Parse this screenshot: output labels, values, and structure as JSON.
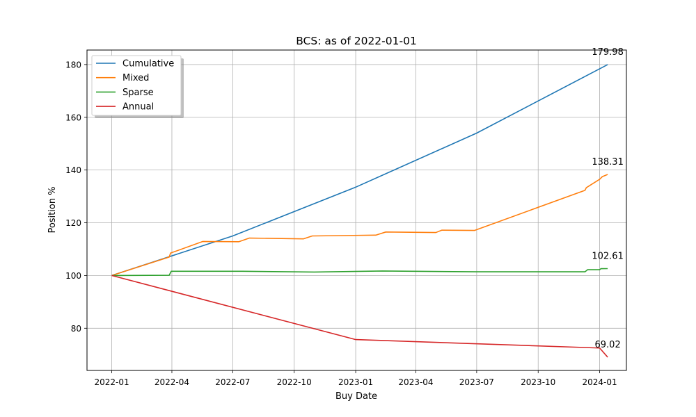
{
  "chart_data": {
    "type": "line",
    "title": "BCS: as of 2022-01-01",
    "xlabel": "Buy Date",
    "ylabel": "Position %",
    "x_type": "date",
    "xlim": [
      "2021-11-25",
      "2024-02-10"
    ],
    "ylim": [
      64,
      185.5
    ],
    "x_ticks": [
      "2022-01",
      "2022-04",
      "2022-07",
      "2022-10",
      "2023-01",
      "2023-04",
      "2023-07",
      "2023-10",
      "2024-01"
    ],
    "y_ticks": [
      80,
      100,
      120,
      140,
      160,
      180
    ],
    "grid": true,
    "legend_position": "upper-left",
    "series": [
      {
        "name": "Cumulative",
        "color": "#1f77b4",
        "points": [
          [
            "2022-01-01",
            100
          ],
          [
            "2022-07-01",
            115
          ],
          [
            "2023-01-01",
            133.5
          ],
          [
            "2023-07-01",
            154
          ],
          [
            "2024-01-13",
            179.98
          ]
        ],
        "end_label": "179.98"
      },
      {
        "name": "Mixed",
        "color": "#ff7f0e",
        "points": [
          [
            "2022-01-01",
            100
          ],
          [
            "2022-03-28",
            107
          ],
          [
            "2022-03-30",
            108.5
          ],
          [
            "2022-05-17",
            112.9
          ],
          [
            "2022-07-10",
            112.8
          ],
          [
            "2022-07-26",
            114.2
          ],
          [
            "2022-10-15",
            113.9
          ],
          [
            "2022-10-28",
            115
          ],
          [
            "2023-01-31",
            115.3
          ],
          [
            "2023-02-15",
            116.5
          ],
          [
            "2023-05-01",
            116.3
          ],
          [
            "2023-05-10",
            117.2
          ],
          [
            "2023-06-28",
            117.1
          ],
          [
            "2023-12-10",
            132.3
          ],
          [
            "2023-12-12",
            133.3
          ],
          [
            "2024-01-01",
            136.5
          ],
          [
            "2024-01-05",
            137.5
          ],
          [
            "2024-01-13",
            138.31
          ]
        ],
        "end_label": "138.31"
      },
      {
        "name": "Sparse",
        "color": "#2ca02c",
        "points": [
          [
            "2022-01-01",
            100
          ],
          [
            "2022-03-28",
            100.1
          ],
          [
            "2022-03-31",
            101.6
          ],
          [
            "2022-07-15",
            101.6
          ],
          [
            "2022-10-31",
            101.3
          ],
          [
            "2023-02-10",
            101.7
          ],
          [
            "2023-06-30",
            101.4
          ],
          [
            "2023-12-10",
            101.4
          ],
          [
            "2023-12-14",
            102.2
          ],
          [
            "2024-01-01",
            102.2
          ],
          [
            "2024-01-03",
            102.6
          ],
          [
            "2024-01-13",
            102.61
          ]
        ],
        "end_label": "102.61"
      },
      {
        "name": "Annual",
        "color": "#d62728",
        "points": [
          [
            "2022-01-01",
            100
          ],
          [
            "2023-01-01",
            75.7
          ],
          [
            "2024-01-01",
            72.5
          ],
          [
            "2024-01-13",
            69.02
          ]
        ],
        "end_label": "69.02"
      }
    ]
  }
}
